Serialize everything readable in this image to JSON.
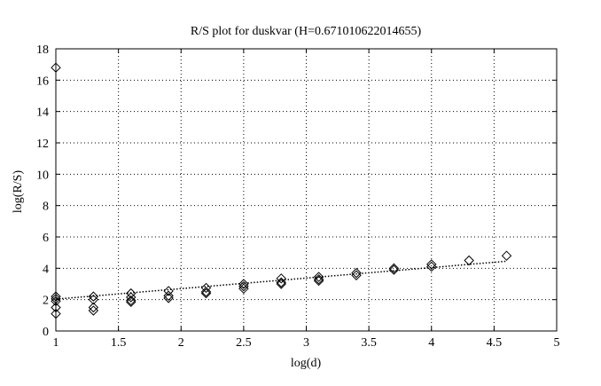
{
  "chart_data": {
    "type": "scatter",
    "title": "R/S plot for duskvar (H=0.671010622014655)",
    "xlabel": "log(d)",
    "ylabel": "log(R/S)",
    "xlim": [
      1,
      5
    ],
    "ylim": [
      0,
      18
    ],
    "xticks": [
      1,
      1.5,
      2,
      2.5,
      3,
      3.5,
      4,
      4.5,
      5
    ],
    "xtick_labels": [
      "1",
      "1.5",
      "2",
      "2.5",
      "3",
      "3.5",
      "4",
      "4.5",
      "5"
    ],
    "yticks": [
      0,
      2,
      4,
      6,
      8,
      10,
      12,
      14,
      16,
      18
    ],
    "ytick_labels": [
      "0",
      "2",
      "4",
      "6",
      "8",
      "10",
      "12",
      "14",
      "16",
      "18"
    ],
    "grid": true,
    "marker": "diamond",
    "series": [
      {
        "points": [
          {
            "x": 1.0,
            "y": 16.8
          },
          {
            "x": 1.0,
            "y": 2.2
          },
          {
            "x": 1.0,
            "y": 2.05
          },
          {
            "x": 1.0,
            "y": 1.9
          },
          {
            "x": 1.0,
            "y": 1.5
          },
          {
            "x": 1.0,
            "y": 1.1
          },
          {
            "x": 1.3,
            "y": 2.2
          },
          {
            "x": 1.3,
            "y": 2.0
          },
          {
            "x": 1.3,
            "y": 1.5
          },
          {
            "x": 1.3,
            "y": 1.3
          },
          {
            "x": 1.6,
            "y": 2.4
          },
          {
            "x": 1.6,
            "y": 2.15
          },
          {
            "x": 1.6,
            "y": 1.95
          },
          {
            "x": 1.6,
            "y": 1.85
          },
          {
            "x": 1.9,
            "y": 2.55
          },
          {
            "x": 1.9,
            "y": 2.25
          },
          {
            "x": 1.9,
            "y": 2.1
          },
          {
            "x": 2.2,
            "y": 2.75
          },
          {
            "x": 2.2,
            "y": 2.5
          },
          {
            "x": 2.2,
            "y": 2.4
          },
          {
            "x": 2.5,
            "y": 3.0
          },
          {
            "x": 2.5,
            "y": 2.85
          },
          {
            "x": 2.5,
            "y": 2.7
          },
          {
            "x": 2.8,
            "y": 3.35
          },
          {
            "x": 2.8,
            "y": 3.1
          },
          {
            "x": 2.8,
            "y": 3.0
          },
          {
            "x": 3.1,
            "y": 3.45
          },
          {
            "x": 3.1,
            "y": 3.3
          },
          {
            "x": 3.1,
            "y": 3.2
          },
          {
            "x": 3.4,
            "y": 3.7
          },
          {
            "x": 3.4,
            "y": 3.55
          },
          {
            "x": 3.7,
            "y": 4.0
          },
          {
            "x": 3.7,
            "y": 3.9
          },
          {
            "x": 4.0,
            "y": 4.25
          },
          {
            "x": 4.0,
            "y": 4.1
          },
          {
            "x": 4.3,
            "y": 4.5
          },
          {
            "x": 4.6,
            "y": 4.8
          }
        ]
      }
    ],
    "fit_line": {
      "x": [
        1,
        4.6
      ],
      "y": [
        2.03,
        4.45
      ],
      "style": "dotted"
    }
  }
}
